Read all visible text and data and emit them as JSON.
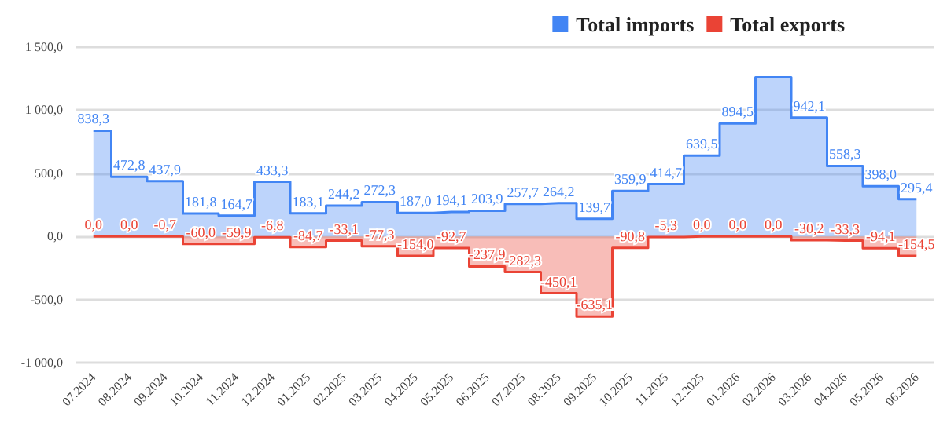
{
  "chart_data": {
    "type": "step",
    "categories": [
      "07.2024",
      "08.2024",
      "09.2024",
      "10.2024",
      "11.2024",
      "12.2024",
      "01.2025",
      "02.2025",
      "03.2025",
      "04.2025",
      "05.2025",
      "06.2025",
      "07.2025",
      "08.2025",
      "09.2025",
      "10.2025",
      "11.2025",
      "12.2025",
      "01.2026",
      "02.2026",
      "03.2026",
      "04.2026",
      "05.2026",
      "06.2026"
    ],
    "series": [
      {
        "name": "Total imports",
        "color": "#4285f4",
        "values": [
          838.3,
          472.8,
          437.9,
          181.8,
          164.7,
          433.3,
          183.1,
          244.2,
          272.3,
          187.0,
          194.1,
          203.9,
          257.7,
          264.2,
          139.7,
          359.9,
          414.7,
          639.5,
          894.5,
          1260,
          942.1,
          558.3,
          398.0,
          295.4
        ],
        "value_labels": [
          "838,3",
          "472,8",
          "437,9",
          "181,8",
          "164,7",
          "433,3",
          "183,1",
          "244,2",
          "272,3",
          "187,0",
          "194,1",
          "203,9",
          "257,7",
          "264,2",
          "139,7",
          "359,9",
          "414,7",
          "639,5",
          "894,5",
          null,
          "942,1",
          "558,3",
          "398,0",
          "295,4"
        ]
      },
      {
        "name": "Total exports",
        "color": "#ea4335",
        "values": [
          0.0,
          0.0,
          -0.7,
          -60.0,
          -59.9,
          -6.8,
          -84.7,
          -33.1,
          -77.3,
          -154.0,
          -92.7,
          -237.9,
          -282.3,
          -450.1,
          -635.1,
          -90.8,
          -5.3,
          0.0,
          0.0,
          0.0,
          -30.2,
          -33.3,
          -94.1,
          -154.5
        ],
        "value_labels": [
          "0,0",
          "0,0",
          "-0,7",
          "-60,0",
          "-59,9",
          "-6,8",
          "-84,7",
          "-33,1",
          "-77,3",
          "-154,0",
          "-92,7",
          "-237,9",
          "-282,3",
          "-450,1",
          "-635,1",
          "-90,8",
          "-5,3",
          "0,0",
          "0,0",
          "0,0",
          "-30,2",
          "-33,3",
          "-94,1",
          "-154,5"
        ]
      }
    ],
    "ylim": [
      -1000,
      1500
    ],
    "yticks": [
      {
        "value": -1000,
        "label": "-1 000,0"
      },
      {
        "value": -500,
        "label": "-500,0"
      },
      {
        "value": 0,
        "label": "0,0"
      },
      {
        "value": 500,
        "label": "500,0"
      },
      {
        "value": 1000,
        "label": "1 000,0"
      },
      {
        "value": 1500,
        "label": "1 500,0"
      }
    ],
    "grid": "y",
    "legend": "top right"
  }
}
